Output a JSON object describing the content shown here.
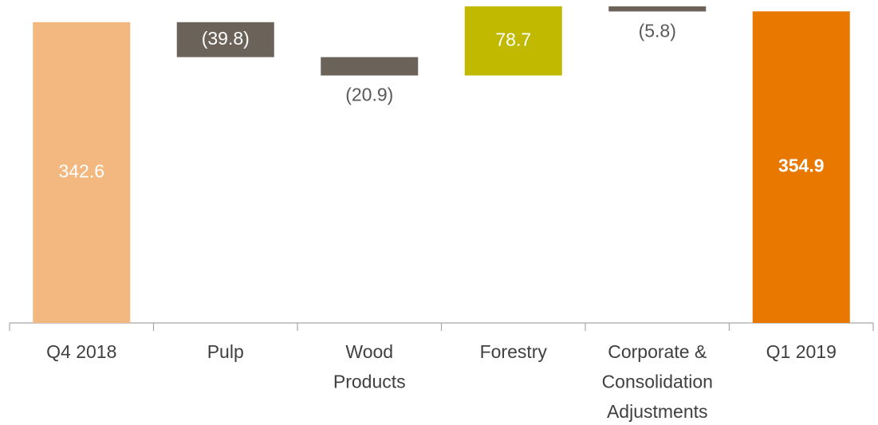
{
  "chart_data": {
    "type": "waterfall",
    "categories": [
      "Q4 2018",
      "Pulp",
      "Wood Products",
      "Forestry",
      "Corporate & Consolidation Adjustments",
      "Q1 2019"
    ],
    "values": [
      342.6,
      -39.8,
      -20.9,
      78.7,
      -5.8,
      354.9
    ],
    "value_labels": [
      "342.6",
      "(39.8)",
      "(20.9)",
      "78.7",
      "(5.8)",
      "354.9"
    ],
    "colors": [
      "#f2b880",
      "#6b6259",
      "#6b6259",
      "#c0b900",
      "#6b6259",
      "#e87800"
    ]
  }
}
